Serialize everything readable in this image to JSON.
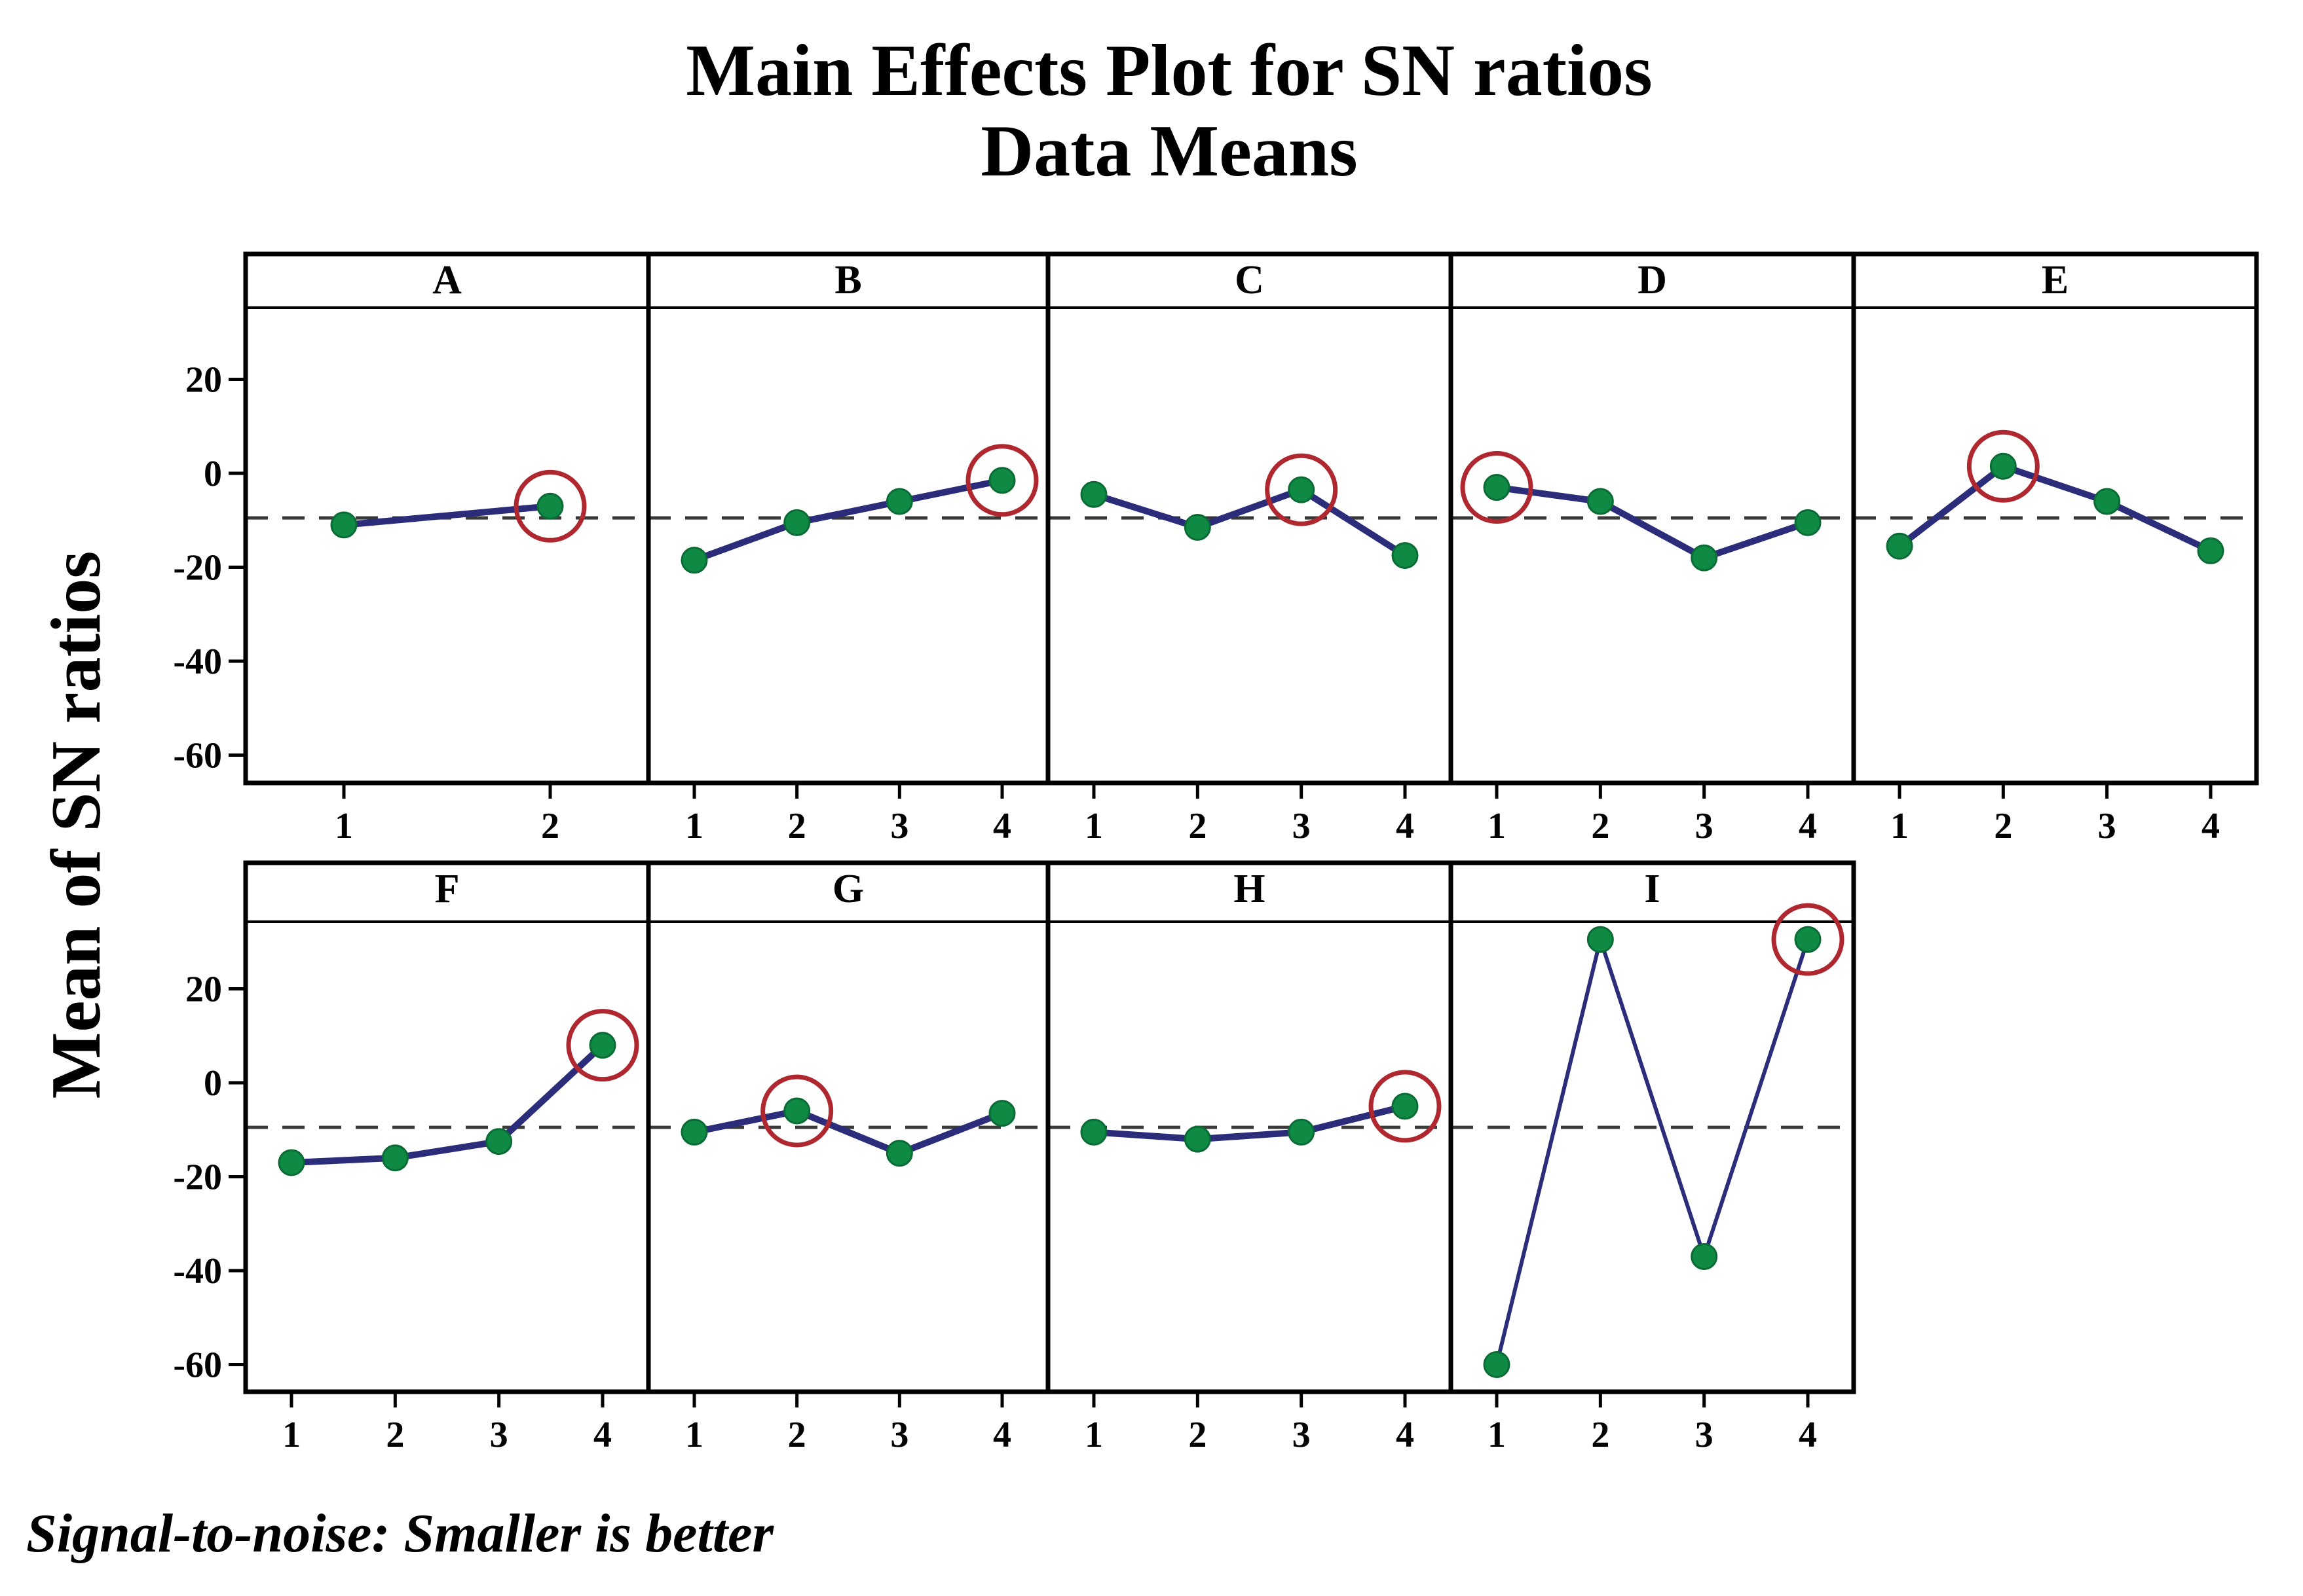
{
  "chart_data": {
    "type": "line",
    "title": "Main Effects Plot for SN ratios",
    "subtitle": "Data Means",
    "ylabel": "Mean of SN ratios",
    "footnote": "Signal-to-noise: Smaller is better",
    "ylim": [
      -65,
      35
    ],
    "yticks": [
      20,
      0,
      -20,
      -40,
      -60
    ],
    "reference_mean": -9.5,
    "colors": {
      "line": "#2b2d7a",
      "point": "#0f8a45",
      "highlight": "#b0282f",
      "reference": "#3a3a3a",
      "frame": "#000000"
    },
    "panels": [
      {
        "name": "A",
        "x": [
          "1",
          "2"
        ],
        "values": [
          -11,
          -7
        ],
        "highlight_index": 1
      },
      {
        "name": "B",
        "x": [
          "1",
          "2",
          "3",
          "4"
        ],
        "values": [
          -18.5,
          -10.5,
          -6,
          -1.5
        ],
        "highlight_index": 3
      },
      {
        "name": "C",
        "x": [
          "1",
          "2",
          "3",
          "4"
        ],
        "values": [
          -4.5,
          -11.5,
          -3.5,
          -17.5
        ],
        "highlight_index": 2
      },
      {
        "name": "D",
        "x": [
          "1",
          "2",
          "3",
          "4"
        ],
        "values": [
          -3,
          -6,
          -18,
          -10.5
        ],
        "highlight_index": 0
      },
      {
        "name": "E",
        "x": [
          "1",
          "2",
          "3",
          "4"
        ],
        "values": [
          -15.5,
          1.5,
          -6,
          -16.5
        ],
        "highlight_index": 1
      },
      {
        "name": "F",
        "x": [
          "1",
          "2",
          "3",
          "4"
        ],
        "values": [
          -17,
          -16,
          -12.5,
          8
        ],
        "highlight_index": 3
      },
      {
        "name": "G",
        "x": [
          "1",
          "2",
          "3",
          "4"
        ],
        "values": [
          -10.5,
          -6,
          -15,
          -6.5
        ],
        "highlight_index": 1
      },
      {
        "name": "H",
        "x": [
          "1",
          "2",
          "3",
          "4"
        ],
        "values": [
          -10.5,
          -12,
          -10.5,
          -5
        ],
        "highlight_index": 3
      },
      {
        "name": "I",
        "x": [
          "1",
          "2",
          "3",
          "4"
        ],
        "values": [
          -60,
          30.5,
          -37,
          30.5
        ],
        "highlight_index": 3
      }
    ]
  }
}
